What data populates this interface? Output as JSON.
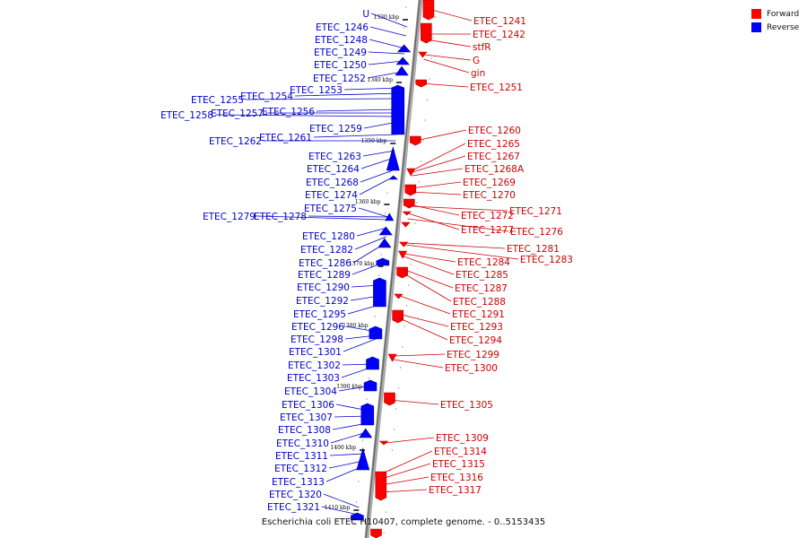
{
  "legend": {
    "forward_label": "Forward",
    "reverse_label": "Reverse",
    "forward_color": "#ff0000",
    "reverse_color": "#0000ff"
  },
  "footer_text": "Escherichia coli ETEC H10407, complete genome. - 0..5153435",
  "axis_ticks": [
    "1330 kbp",
    "1340 kbp",
    "1350 kbp",
    "1360 kbp",
    "1370 kbp",
    "1380 kbp",
    "1390 kbp",
    "1400 kbp",
    "1410 kbp"
  ],
  "forward_genes": [
    "ETEC_1241",
    "ETEC_1242",
    "stfR",
    "G",
    "gin",
    "ETEC_1251",
    "ETEC_1260",
    "ETEC_1265",
    "ETEC_1267",
    "ETEC_1268A",
    "ETEC_1269",
    "ETEC_1270",
    "ETEC_1271",
    "ETEC_1272",
    "ETEC_1277",
    "ETEC_1276",
    "ETEC_1281",
    "ETEC_1283",
    "ETEC_1284",
    "ETEC_1285",
    "ETEC_1287",
    "ETEC_1288",
    "ETEC_1291",
    "ETEC_1293",
    "ETEC_1294",
    "ETEC_1299",
    "ETEC_1300",
    "ETEC_1305",
    "ETEC_1309",
    "ETEC_1314",
    "ETEC_1315",
    "ETEC_1316",
    "ETEC_1317"
  ],
  "reverse_genes": [
    "U",
    "ETEC_1246",
    "ETEC_1248",
    "ETEC_1249",
    "ETEC_1250",
    "ETEC_1252",
    "ETEC_1253",
    "ETEC_1254",
    "ETEC_1255",
    "ETEC_1256",
    "ETEC_1257",
    "ETEC_1258",
    "ETEC_1259",
    "ETEC_1261",
    "ETEC_1262",
    "ETEC_1263",
    "ETEC_1264",
    "ETEC_1268",
    "ETEC_1274",
    "ETEC_1275",
    "ETEC_1278",
    "ETEC_1279",
    "ETEC_1280",
    "ETEC_1282",
    "ETEC_1286",
    "ETEC_1289",
    "ETEC_1290",
    "ETEC_1292",
    "ETEC_1295",
    "ETEC_1296",
    "ETEC_1298",
    "ETEC_1301",
    "ETEC_1302",
    "ETEC_1303",
    "ETEC_1304",
    "ETEC_1306",
    "ETEC_1307",
    "ETEC_1308",
    "ETEC_1310",
    "ETEC_1311",
    "ETEC_1312",
    "ETEC_1313",
    "ETEC_1320",
    "ETEC_1321"
  ]
}
